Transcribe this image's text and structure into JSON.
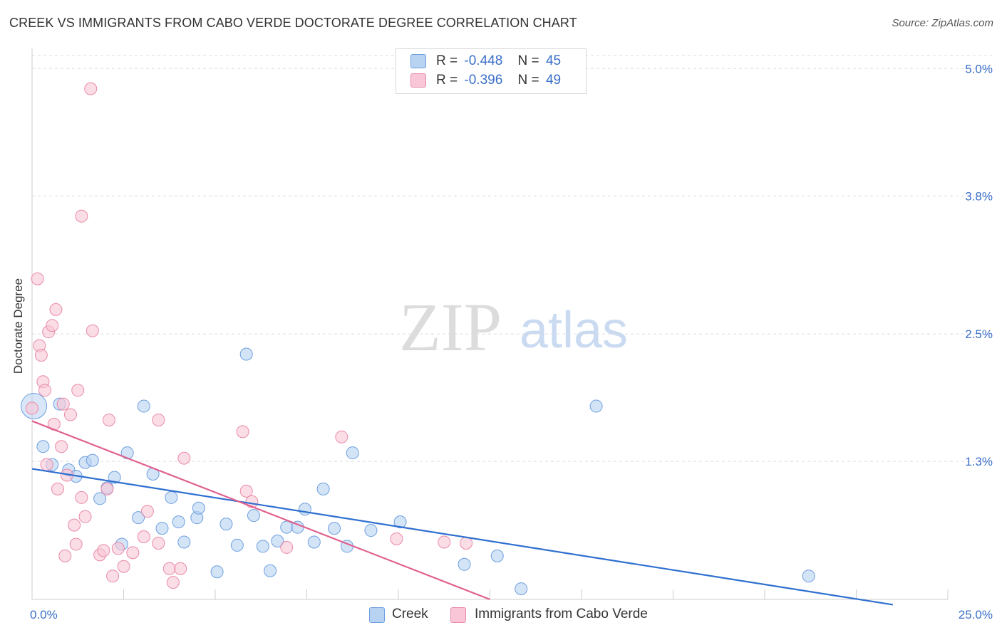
{
  "header": {
    "title": "CREEK VS IMMIGRANTS FROM CABO VERDE DOCTORATE DEGREE CORRELATION CHART",
    "source": "Source: ZipAtlas.com"
  },
  "legend": {
    "r_label": "R =",
    "n_label": "N =",
    "series": [
      {
        "r": "-0.448",
        "n": "45"
      },
      {
        "r": "-0.396",
        "n": "49"
      }
    ]
  },
  "watermark": {
    "zip": "ZIP",
    "atlas": "atlas"
  },
  "colors": {
    "creek_fill": "#b8d2f2",
    "creek_stroke": "#6d9fe0",
    "creek_line": "#2f6fd0",
    "cabo_fill": "#f8c6d6",
    "cabo_stroke": "#e98aa9",
    "cabo_line": "#e0618f",
    "axis_text": "#3a6fc9"
  },
  "chart_data": {
    "type": "scatter",
    "title": "CREEK VS IMMIGRANTS FROM CABO VERDE DOCTORATE DEGREE CORRELATION CHART",
    "xlabel": "",
    "ylabel": "Doctorate Degree",
    "xlim": [
      0,
      25
    ],
    "ylim": [
      0,
      5.25
    ],
    "x_tick_labels": [
      "0.0%",
      "25.0%"
    ],
    "y_ticks": [
      1.3,
      2.5,
      3.8,
      5.0
    ],
    "y_tick_labels": [
      "1.3%",
      "2.5%",
      "3.8%",
      "5.0%"
    ],
    "grid": true,
    "series": [
      {
        "name": "Creek",
        "r": -0.448,
        "n": 45,
        "trend": {
          "x": [
            0,
            23.5
          ],
          "y": [
            1.23,
            -0.05
          ]
        },
        "points": [
          {
            "x": 0.05,
            "y": 1.82,
            "big": true
          },
          {
            "x": 0.3,
            "y": 1.44
          },
          {
            "x": 0.55,
            "y": 1.27
          },
          {
            "x": 0.75,
            "y": 1.84
          },
          {
            "x": 1.0,
            "y": 1.22
          },
          {
            "x": 1.2,
            "y": 1.16
          },
          {
            "x": 1.45,
            "y": 1.29
          },
          {
            "x": 1.65,
            "y": 1.31
          },
          {
            "x": 1.85,
            "y": 0.95
          },
          {
            "x": 2.05,
            "y": 1.05
          },
          {
            "x": 2.25,
            "y": 1.15
          },
          {
            "x": 2.45,
            "y": 0.52
          },
          {
            "x": 2.6,
            "y": 1.38
          },
          {
            "x": 2.9,
            "y": 0.77
          },
          {
            "x": 3.05,
            "y": 1.82
          },
          {
            "x": 3.3,
            "y": 1.18
          },
          {
            "x": 3.55,
            "y": 0.67
          },
          {
            "x": 3.8,
            "y": 0.96
          },
          {
            "x": 4.0,
            "y": 0.73
          },
          {
            "x": 4.15,
            "y": 0.54
          },
          {
            "x": 4.5,
            "y": 0.77
          },
          {
            "x": 4.55,
            "y": 0.86
          },
          {
            "x": 5.05,
            "y": 0.26
          },
          {
            "x": 5.3,
            "y": 0.71
          },
          {
            "x": 5.6,
            "y": 0.51
          },
          {
            "x": 5.85,
            "y": 2.31
          },
          {
            "x": 6.05,
            "y": 0.79
          },
          {
            "x": 6.3,
            "y": 0.5
          },
          {
            "x": 6.5,
            "y": 0.27
          },
          {
            "x": 6.7,
            "y": 0.55
          },
          {
            "x": 6.95,
            "y": 0.68
          },
          {
            "x": 7.25,
            "y": 0.68
          },
          {
            "x": 7.45,
            "y": 0.85
          },
          {
            "x": 7.7,
            "y": 0.54
          },
          {
            "x": 7.95,
            "y": 1.04
          },
          {
            "x": 8.25,
            "y": 0.67
          },
          {
            "x": 8.6,
            "y": 0.5
          },
          {
            "x": 8.75,
            "y": 1.38
          },
          {
            "x": 9.25,
            "y": 0.65
          },
          {
            "x": 10.05,
            "y": 0.73
          },
          {
            "x": 11.8,
            "y": 0.33
          },
          {
            "x": 12.7,
            "y": 0.41
          },
          {
            "x": 13.35,
            "y": 0.1
          },
          {
            "x": 15.4,
            "y": 1.82
          },
          {
            "x": 21.2,
            "y": 0.22
          }
        ]
      },
      {
        "name": "Immigrants from Cabo Verde",
        "r": -0.396,
        "n": 49,
        "trend": {
          "x": [
            0,
            12.5
          ],
          "y": [
            1.68,
            0.0
          ]
        },
        "points": [
          {
            "x": 0.0,
            "y": 1.8
          },
          {
            "x": 0.15,
            "y": 3.02
          },
          {
            "x": 0.2,
            "y": 2.39
          },
          {
            "x": 0.25,
            "y": 2.3
          },
          {
            "x": 0.3,
            "y": 2.05
          },
          {
            "x": 0.35,
            "y": 1.97
          },
          {
            "x": 0.4,
            "y": 1.27
          },
          {
            "x": 0.45,
            "y": 2.52
          },
          {
            "x": 0.55,
            "y": 2.58
          },
          {
            "x": 0.6,
            "y": 1.65
          },
          {
            "x": 0.65,
            "y": 2.73
          },
          {
            "x": 0.7,
            "y": 1.04
          },
          {
            "x": 0.85,
            "y": 1.84
          },
          {
            "x": 0.8,
            "y": 1.44
          },
          {
            "x": 0.9,
            "y": 0.41
          },
          {
            "x": 0.95,
            "y": 1.17
          },
          {
            "x": 1.05,
            "y": 1.74
          },
          {
            "x": 1.15,
            "y": 0.7
          },
          {
            "x": 1.2,
            "y": 0.52
          },
          {
            "x": 1.25,
            "y": 1.97
          },
          {
            "x": 1.35,
            "y": 3.61
          },
          {
            "x": 1.35,
            "y": 0.96
          },
          {
            "x": 1.45,
            "y": 0.78
          },
          {
            "x": 1.6,
            "y": 4.81
          },
          {
            "x": 1.65,
            "y": 2.53
          },
          {
            "x": 1.85,
            "y": 0.42
          },
          {
            "x": 1.95,
            "y": 0.46
          },
          {
            "x": 2.05,
            "y": 1.04
          },
          {
            "x": 2.1,
            "y": 1.69
          },
          {
            "x": 2.2,
            "y": 0.22
          },
          {
            "x": 2.35,
            "y": 0.48
          },
          {
            "x": 2.5,
            "y": 0.31
          },
          {
            "x": 2.75,
            "y": 0.44
          },
          {
            "x": 3.05,
            "y": 0.59
          },
          {
            "x": 3.15,
            "y": 0.83
          },
          {
            "x": 3.45,
            "y": 0.53
          },
          {
            "x": 3.45,
            "y": 1.69
          },
          {
            "x": 3.75,
            "y": 0.29
          },
          {
            "x": 3.85,
            "y": 0.16
          },
          {
            "x": 4.05,
            "y": 0.29
          },
          {
            "x": 4.15,
            "y": 1.33
          },
          {
            "x": 5.75,
            "y": 1.58
          },
          {
            "x": 5.85,
            "y": 1.02
          },
          {
            "x": 6.0,
            "y": 0.92
          },
          {
            "x": 6.95,
            "y": 0.49
          },
          {
            "x": 8.45,
            "y": 1.53
          },
          {
            "x": 9.95,
            "y": 0.57
          },
          {
            "x": 11.25,
            "y": 0.54
          },
          {
            "x": 11.85,
            "y": 0.53
          }
        ]
      }
    ]
  }
}
